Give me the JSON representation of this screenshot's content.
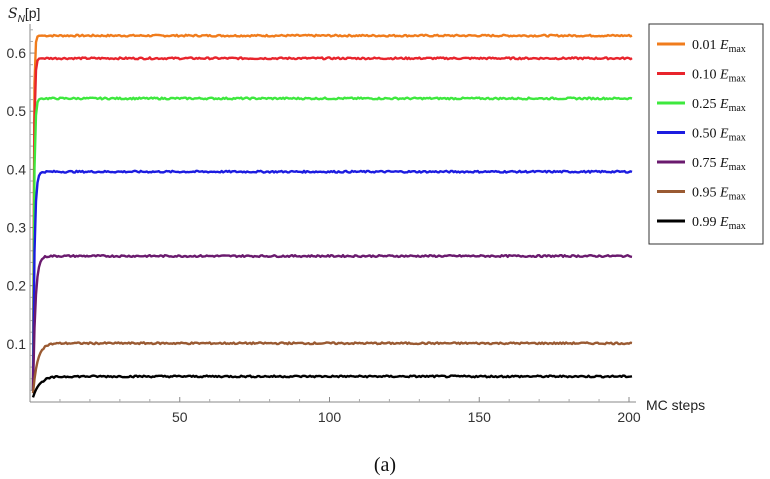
{
  "chart_data": {
    "type": "line",
    "xlabel": "MC steps",
    "ylabel": "S_N[p]",
    "xlim": [
      0,
      200
    ],
    "ylim": [
      0,
      0.65
    ],
    "xticks": [
      50,
      100,
      150,
      200
    ],
    "yticks": [
      0.1,
      0.2,
      0.3,
      0.4,
      0.5,
      0.6
    ],
    "grid": false,
    "legend_position": "right",
    "caption": "(a)",
    "series": [
      {
        "name": "0.01 E",
        "name_sub": "max",
        "color": "#f07c1c",
        "start": 0.02,
        "plateau": 0.63,
        "tau": 0.25
      },
      {
        "name": "0.10 E",
        "name_sub": "max",
        "color": "#e8242c",
        "start": 0.02,
        "plateau": 0.591,
        "tau": 0.3
      },
      {
        "name": "0.25 E",
        "name_sub": "max",
        "color": "#3ee83e",
        "start": 0.02,
        "plateau": 0.522,
        "tau": 0.35
      },
      {
        "name": "0.50 E",
        "name_sub": "max",
        "color": "#1c1ce0",
        "start": 0.02,
        "plateau": 0.396,
        "tau": 0.5
      },
      {
        "name": "0.75 E",
        "name_sub": "max",
        "color": "#6a1a6e",
        "start": 0.02,
        "plateau": 0.251,
        "tau": 0.8
      },
      {
        "name": "0.95 E",
        "name_sub": "max",
        "color": "#9a5a32",
        "start": 0.015,
        "plateau": 0.101,
        "tau": 1.5
      },
      {
        "name": "0.99 E",
        "name_sub": "max",
        "color": "#000000",
        "start": 0.008,
        "plateau": 0.044,
        "tau": 2.2
      }
    ]
  }
}
